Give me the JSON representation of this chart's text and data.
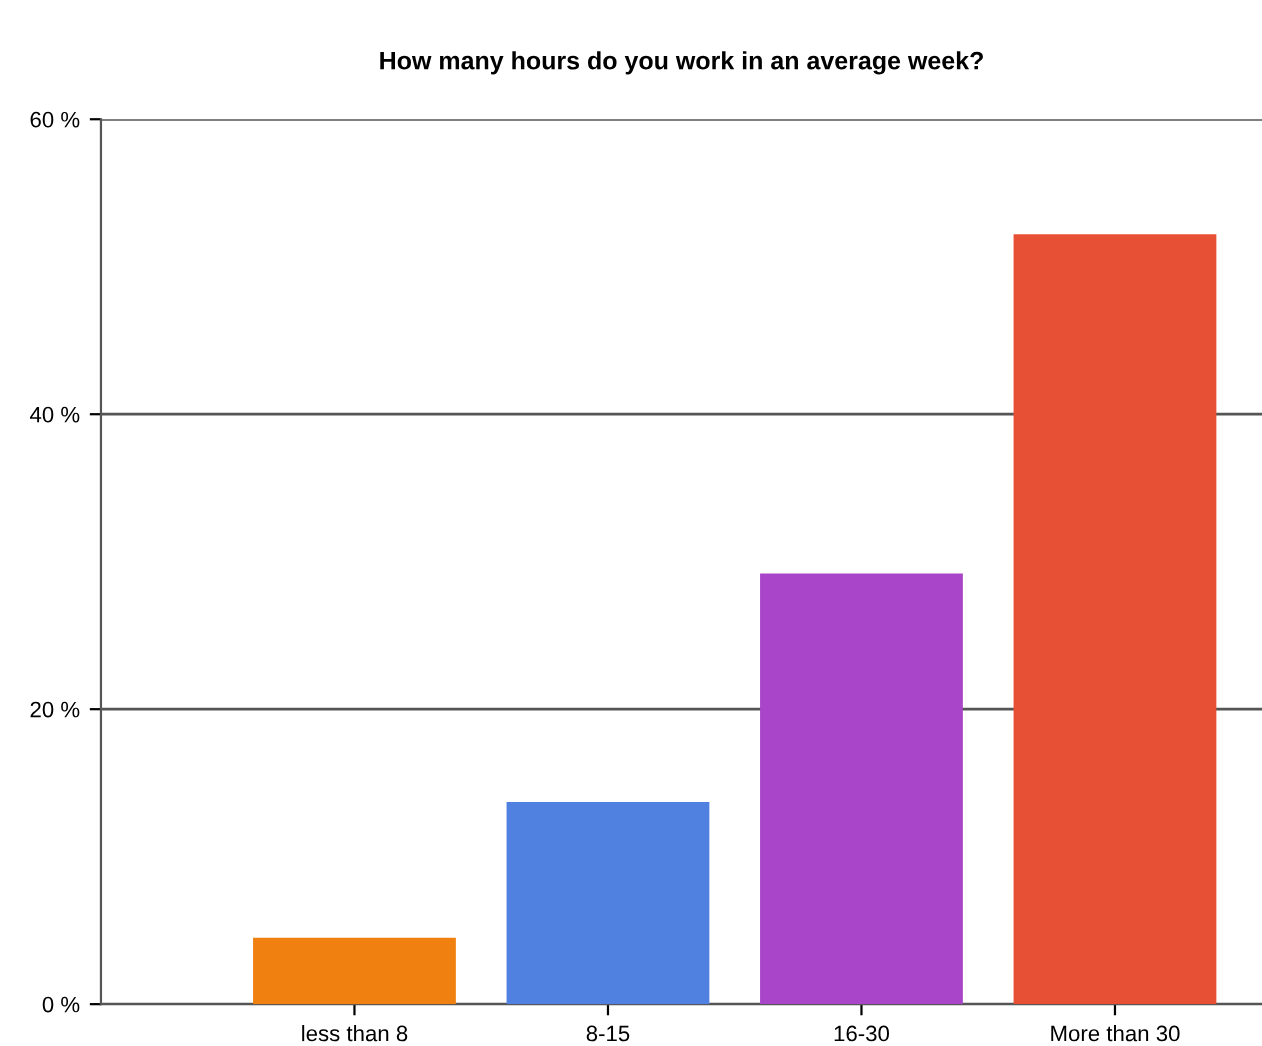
{
  "chart_data": {
    "type": "bar",
    "title": "How many hours do you work in an average week?",
    "categories": [
      "less than 8",
      "8-15",
      "16-30",
      "More than 30"
    ],
    "values": [
      4.5,
      13.7,
      29.2,
      52.2
    ],
    "colors": [
      "#f08010",
      "#5080e0",
      "#a845c8",
      "#e85035"
    ],
    "ylim": [
      0,
      60
    ],
    "yticks": [
      {
        "value": 0,
        "label": "0 %"
      },
      {
        "value": 20,
        "label": "20 %"
      },
      {
        "value": 40,
        "label": "40 %"
      },
      {
        "value": 60,
        "label": "60 %"
      }
    ],
    "grid": "y"
  }
}
